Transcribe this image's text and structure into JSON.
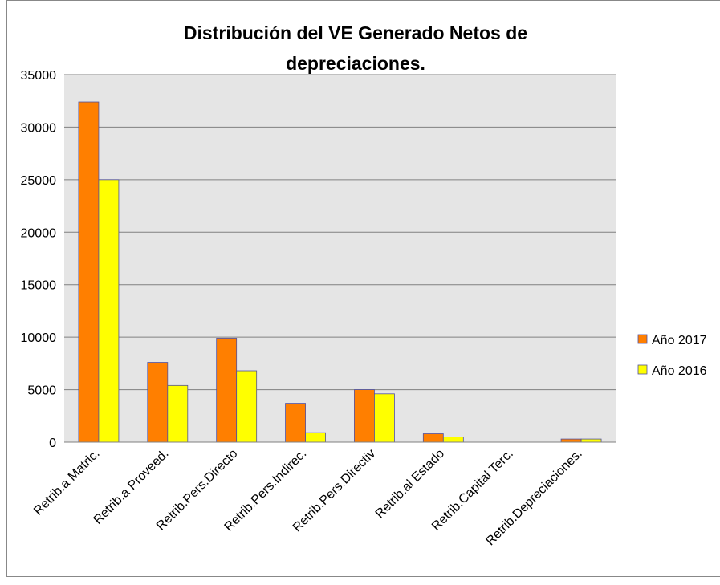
{
  "chart_data": {
    "type": "bar",
    "title": "Distribución del VE Generado Netos de depreciaciones.",
    "categories": [
      "Retrib.a Matric.",
      "Retrib.a Proveed.",
      "Retrib.Pers.Directo",
      "Retrib.Pers.Indirec.",
      "Retrib.Pers.Directiv",
      "Retrib.al Estado",
      "Retrib.Capital Terc.",
      "Retrib.Depreciaciones."
    ],
    "series": [
      {
        "name": "Año 2017",
        "color": "#ff7f00",
        "values": [
          32400,
          7600,
          9900,
          3700,
          5000,
          800,
          0,
          300
        ]
      },
      {
        "name": "Año 2016",
        "color": "#ffff00",
        "values": [
          25000,
          5400,
          6800,
          900,
          4600,
          500,
          0,
          300
        ]
      }
    ],
    "ylim": [
      0,
      35000
    ],
    "yticks": [
      0,
      5000,
      10000,
      15000,
      20000,
      25000,
      30000,
      35000
    ],
    "grid": true,
    "legend": "right"
  }
}
